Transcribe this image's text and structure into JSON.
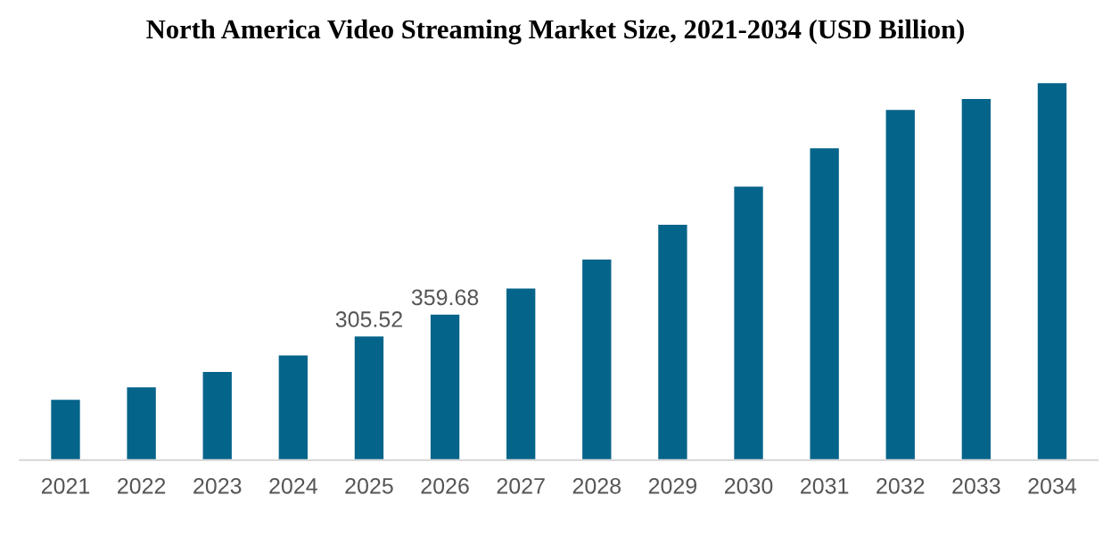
{
  "chart_data": {
    "type": "bar",
    "title": "North America Video Streaming Market Size, 2021-2034 (USD Billion)",
    "categories": [
      "2021",
      "2022",
      "2023",
      "2024",
      "2025",
      "2026",
      "2027",
      "2028",
      "2029",
      "2030",
      "2031",
      "2032",
      "2033",
      "2034"
    ],
    "values": [
      149,
      180,
      218,
      259,
      305.52,
      359.68,
      424,
      496,
      582,
      676,
      771,
      866,
      893,
      932
    ],
    "value_labels": [
      null,
      null,
      null,
      null,
      "305.52",
      "359.68",
      null,
      null,
      null,
      null,
      null,
      null,
      null,
      null
    ],
    "color": "#05648a",
    "grid": false,
    "legend": false
  }
}
